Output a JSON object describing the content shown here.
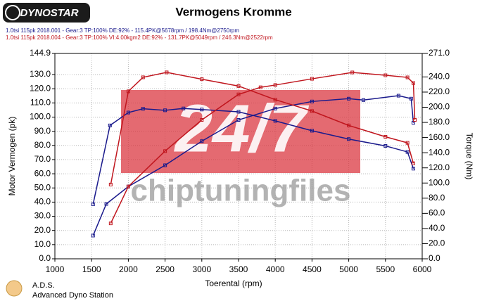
{
  "chart_data": {
    "type": "line",
    "logo": "DYNOSTAR",
    "title": "Vermogens Kromme",
    "legend": [
      {
        "text": "1.0tsi 115pk 2018.001 - Gear:3 TP:100% DE:92%   - 115.4PK@5678rpm / 198.4Nm@2750rpm",
        "color": "#1a1a8c"
      },
      {
        "text": "1.0tsi 115pk 2018.004 - Gear:3 TP:100% VI:4.00kgm2 DE:92%   - 131.7PK@5049rpm / 246.3Nm@2522rpm",
        "color": "#c0161e"
      }
    ],
    "watermark": [
      "24/7",
      "chiptuningfiles"
    ],
    "xlabel": "Toerental (rpm)",
    "ylabel": "Motor Vermogen (pk)",
    "y2label": "Torque (Nm)",
    "footer": [
      "A.D.S.",
      "Advanced Dyno Station"
    ],
    "xlim": [
      1000,
      6000
    ],
    "xticks": [
      1000,
      1500,
      2000,
      2500,
      3000,
      3500,
      4000,
      4500,
      5000,
      5500,
      6000
    ],
    "ylim": [
      0,
      144.9
    ],
    "yticks": [
      {
        "value": 0,
        "label": "0.0"
      },
      {
        "value": 10,
        "label": "10.0"
      },
      {
        "value": 20,
        "label": "20.0"
      },
      {
        "value": 30,
        "label": "30.0"
      },
      {
        "value": 40,
        "label": "40.0"
      },
      {
        "value": 50,
        "label": "50.0"
      },
      {
        "value": 60,
        "label": "60.0"
      },
      {
        "value": 70,
        "label": "70.0"
      },
      {
        "value": 80,
        "label": "80.0"
      },
      {
        "value": 90,
        "label": "90.0"
      },
      {
        "value": 100,
        "label": "100.0"
      },
      {
        "value": 110,
        "label": "110.0"
      },
      {
        "value": 120,
        "label": "120.0"
      },
      {
        "value": 130,
        "label": "130.0"
      },
      {
        "value": 144.9,
        "label": "144.9"
      }
    ],
    "y2lim": [
      0,
      271
    ],
    "y2ticks": [
      {
        "value": 0,
        "label": "0.0"
      },
      {
        "value": 20,
        "label": "20.0"
      },
      {
        "value": 40,
        "label": "40.0"
      },
      {
        "value": 60,
        "label": "60.0"
      },
      {
        "value": 80,
        "label": "80.0"
      },
      {
        "value": 100,
        "label": "100.0"
      },
      {
        "value": 120,
        "label": "120.0"
      },
      {
        "value": 140,
        "label": "140.0"
      },
      {
        "value": 160,
        "label": "160.0"
      },
      {
        "value": 180,
        "label": "180.0"
      },
      {
        "value": 200,
        "label": "200.0"
      },
      {
        "value": 220,
        "label": "220.0"
      },
      {
        "value": 240,
        "label": "240.0"
      },
      {
        "value": 271,
        "label": "271.0"
      }
    ],
    "grid": true,
    "series": [
      {
        "color": "#1a1a8c",
        "axis": "y",
        "x": [
          1520,
          1700,
          2000,
          2500,
          3000,
          3500,
          4000,
          4500,
          5000,
          5200,
          5678,
          5850,
          5880
        ],
        "values": [
          16.4,
          38.7,
          51,
          66,
          83,
          98,
          106,
          111,
          113,
          112,
          115.1,
          113,
          96
        ]
      },
      {
        "color": "#1a1a8c",
        "axis": "y2",
        "x": [
          1520,
          1750,
          2000,
          2200,
          2500,
          2750,
          3000,
          3500,
          4000,
          4500,
          5000,
          5500,
          5800,
          5880
        ],
        "values": [
          72,
          176,
          193,
          198,
          196,
          198.4,
          197,
          194,
          182,
          169,
          158,
          149,
          141,
          119
        ]
      },
      {
        "color": "#c0161e",
        "axis": "y",
        "x": [
          1760,
          2000,
          2500,
          3000,
          3500,
          3800,
          4000,
          4500,
          5049,
          5500,
          5800,
          5880,
          5900
        ],
        "values": [
          25,
          51,
          76,
          98,
          116,
          121,
          122.6,
          127,
          131.5,
          129.5,
          128,
          124,
          98
        ]
      },
      {
        "color": "#c0161e",
        "axis": "y2",
        "x": [
          1760,
          2000,
          2200,
          2522,
          3000,
          3500,
          4000,
          4500,
          5000,
          5500,
          5800,
          5880
        ],
        "values": [
          98,
          221,
          239.5,
          246,
          237,
          228,
          210,
          195,
          176,
          161,
          153,
          126
        ]
      }
    ]
  }
}
